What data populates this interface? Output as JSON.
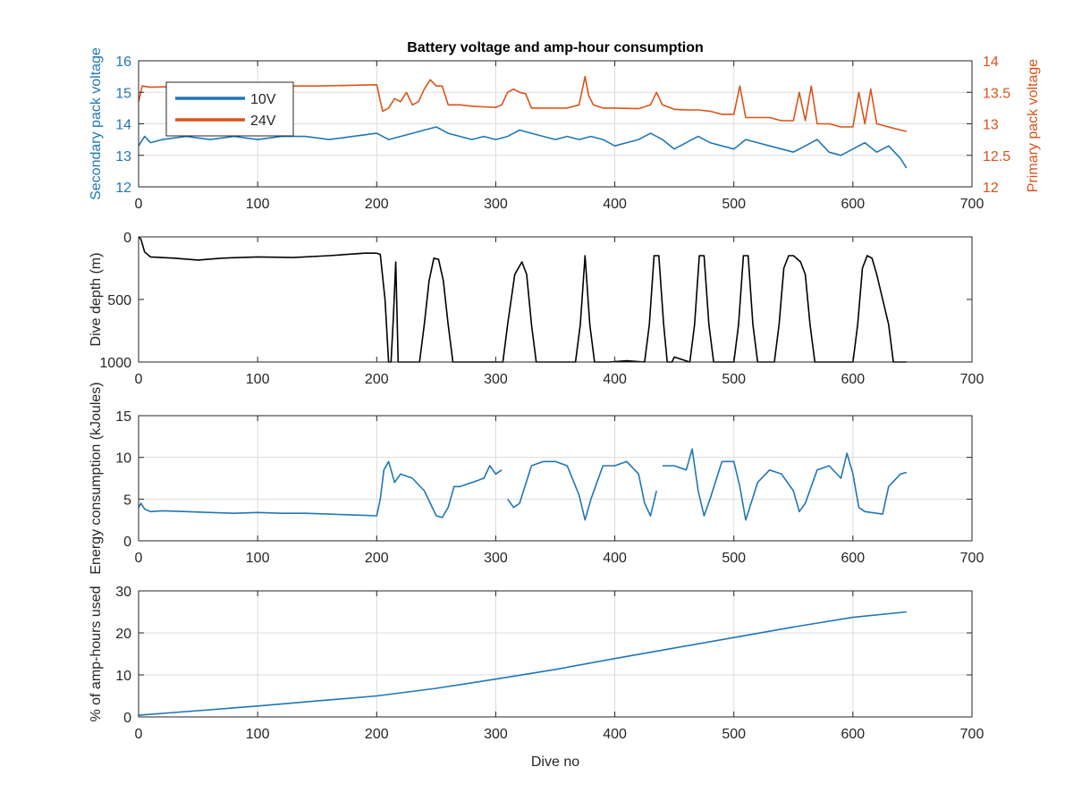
{
  "colors": {
    "blue": "#1f77b4",
    "orange": "#d95319",
    "black": "#000000",
    "grid": "#dcdcdc",
    "axis": "#262626"
  },
  "chart_data": [
    {
      "type": "line",
      "title": "Battery voltage and amp-hour consumption",
      "xlabel": "",
      "ylabel_left": "Secondary pack voltage",
      "ylabel_right": "Primary pack voltage",
      "xlim": [
        0,
        700
      ],
      "ylim_left": [
        12,
        16
      ],
      "ylim_right": [
        12,
        14
      ],
      "xticks": [
        0,
        100,
        200,
        300,
        400,
        500,
        600,
        700
      ],
      "yticks_left": [
        12,
        13,
        14,
        15,
        16
      ],
      "yticks_right": [
        12,
        12.5,
        13,
        13.5,
        14
      ],
      "grid": true,
      "legend": {
        "position": "top-left",
        "entries": [
          "10V",
          "24V"
        ]
      },
      "series": [
        {
          "name": "10V",
          "axis": "left",
          "color": "blue",
          "x": [
            0,
            5,
            10,
            20,
            40,
            60,
            80,
            100,
            120,
            140,
            160,
            180,
            200,
            210,
            220,
            230,
            240,
            250,
            260,
            270,
            280,
            290,
            300,
            310,
            320,
            330,
            340,
            350,
            360,
            370,
            380,
            390,
            400,
            410,
            420,
            430,
            440,
            450,
            460,
            470,
            480,
            490,
            500,
            510,
            520,
            530,
            540,
            550,
            560,
            570,
            580,
            590,
            600,
            610,
            620,
            630,
            640,
            645
          ],
          "y": [
            13.3,
            13.6,
            13.4,
            13.5,
            13.6,
            13.5,
            13.6,
            13.5,
            13.6,
            13.6,
            13.5,
            13.6,
            13.7,
            13.5,
            13.6,
            13.7,
            13.8,
            13.9,
            13.7,
            13.6,
            13.5,
            13.6,
            13.5,
            13.6,
            13.8,
            13.7,
            13.6,
            13.5,
            13.6,
            13.5,
            13.6,
            13.5,
            13.3,
            13.4,
            13.5,
            13.7,
            13.5,
            13.2,
            13.4,
            13.6,
            13.4,
            13.3,
            13.2,
            13.5,
            13.4,
            13.3,
            13.2,
            13.1,
            13.3,
            13.5,
            13.1,
            13.0,
            13.2,
            13.4,
            13.1,
            13.3,
            12.9,
            12.6
          ]
        },
        {
          "name": "24V",
          "axis": "right",
          "color": "orange",
          "x": [
            0,
            3,
            10,
            50,
            100,
            150,
            200,
            205,
            210,
            215,
            220,
            225,
            230,
            235,
            240,
            245,
            250,
            255,
            260,
            270,
            280,
            290,
            300,
            305,
            310,
            315,
            320,
            325,
            330,
            340,
            350,
            360,
            370,
            375,
            378,
            382,
            390,
            400,
            420,
            430,
            435,
            440,
            450,
            460,
            470,
            480,
            490,
            500,
            505,
            510,
            520,
            530,
            540,
            550,
            555,
            560,
            565,
            570,
            580,
            590,
            600,
            605,
            610,
            615,
            620,
            630,
            640,
            645
          ],
          "y": [
            13.35,
            13.6,
            13.58,
            13.6,
            13.6,
            13.6,
            13.62,
            13.2,
            13.25,
            13.4,
            13.35,
            13.5,
            13.3,
            13.35,
            13.55,
            13.7,
            13.6,
            13.6,
            13.3,
            13.3,
            13.28,
            13.27,
            13.26,
            13.3,
            13.5,
            13.55,
            13.5,
            13.48,
            13.25,
            13.25,
            13.25,
            13.25,
            13.3,
            13.75,
            13.45,
            13.3,
            13.25,
            13.25,
            13.24,
            13.3,
            13.5,
            13.3,
            13.23,
            13.22,
            13.22,
            13.2,
            13.15,
            13.15,
            13.6,
            13.1,
            13.1,
            13.1,
            13.05,
            13.05,
            13.5,
            13.05,
            13.6,
            13.0,
            13.0,
            12.95,
            12.95,
            13.5,
            13.0,
            13.55,
            13.0,
            12.95,
            12.9,
            12.88
          ]
        }
      ]
    },
    {
      "type": "line",
      "title": "",
      "xlabel": "",
      "ylabel": "Dive depth (m)",
      "xlim": [
        0,
        700
      ],
      "ylim": [
        0,
        1000
      ],
      "y_reversed": true,
      "xticks": [
        0,
        100,
        200,
        300,
        400,
        500,
        600,
        700
      ],
      "yticks": [
        0,
        500,
        1000
      ],
      "grid": false,
      "series": [
        {
          "color": "black",
          "x": [
            0,
            2,
            5,
            10,
            30,
            50,
            70,
            100,
            130,
            160,
            190,
            200,
            203,
            207,
            210,
            212,
            214,
            216,
            218,
            222,
            236,
            240,
            244,
            248,
            252,
            256,
            260,
            264,
            300,
            306,
            310,
            316,
            322,
            326,
            330,
            334,
            367,
            371,
            375,
            379,
            383,
            395,
            410,
            425,
            429,
            433,
            437,
            441,
            444,
            448,
            450,
            463,
            467,
            471,
            475,
            479,
            483,
            500,
            504,
            508,
            512,
            516,
            520,
            534,
            538,
            542,
            546,
            550,
            556,
            560,
            564,
            568,
            600,
            604,
            608,
            612,
            616,
            620,
            630,
            634,
            645
          ],
          "y": [
            0,
            20,
            120,
            160,
            170,
            185,
            170,
            160,
            165,
            150,
            130,
            130,
            140,
            500,
            1000,
            1000,
            650,
            200,
            1000,
            1000,
            1000,
            700,
            350,
            170,
            180,
            350,
            700,
            1000,
            1000,
            1000,
            700,
            300,
            200,
            300,
            700,
            1000,
            1000,
            700,
            150,
            700,
            1000,
            1000,
            990,
            1000,
            700,
            150,
            150,
            700,
            1000,
            1000,
            960,
            1000,
            700,
            150,
            150,
            700,
            1000,
            1000,
            700,
            150,
            150,
            700,
            1000,
            1000,
            700,
            250,
            150,
            150,
            200,
            300,
            700,
            1000,
            1000,
            700,
            250,
            150,
            170,
            300,
            700,
            1000,
            1000
          ]
        }
      ]
    },
    {
      "type": "line",
      "title": "",
      "xlabel": "",
      "ylabel": "Energy consumption (kJoules)",
      "xlim": [
        0,
        700
      ],
      "ylim": [
        0,
        15
      ],
      "xticks": [
        0,
        100,
        200,
        300,
        400,
        500,
        600,
        700
      ],
      "yticks": [
        0,
        5,
        10,
        15
      ],
      "grid": true,
      "series": [
        {
          "color": "blue",
          "x": [
            0,
            2,
            5,
            10,
            20,
            40,
            60,
            80,
            100,
            120,
            140,
            160,
            180,
            200,
            203,
            206,
            210,
            215,
            220,
            230,
            240,
            250,
            255,
            260,
            265,
            270,
            280,
            290,
            295,
            300,
            305,
            null,
            310,
            315,
            320,
            330,
            340,
            350,
            360,
            370,
            375,
            380,
            390,
            400,
            410,
            420,
            425,
            430,
            435,
            null,
            440,
            450,
            460,
            465,
            470,
            475,
            480,
            490,
            500,
            505,
            510,
            520,
            530,
            540,
            550,
            555,
            560,
            570,
            580,
            590,
            595,
            600,
            605,
            610,
            620,
            625,
            630,
            640,
            645
          ],
          "y": [
            4.0,
            4.5,
            3.8,
            3.5,
            3.6,
            3.5,
            3.4,
            3.3,
            3.4,
            3.3,
            3.3,
            3.2,
            3.1,
            3.0,
            5.0,
            8.5,
            9.5,
            7.0,
            8.0,
            7.5,
            6.0,
            3.0,
            2.8,
            4.0,
            6.5,
            6.5,
            7.0,
            7.5,
            9.0,
            8.0,
            8.5,
            null,
            5.0,
            4.0,
            4.5,
            9.0,
            9.5,
            9.5,
            9.0,
            5.5,
            2.5,
            5.0,
            9.0,
            9.0,
            9.5,
            8.0,
            4.5,
            3.0,
            6.0,
            null,
            9.0,
            9.0,
            8.5,
            11.0,
            6.0,
            3.0,
            5.0,
            9.5,
            9.5,
            6.5,
            2.5,
            7.0,
            8.5,
            8.0,
            6.0,
            3.5,
            4.5,
            8.5,
            9.0,
            7.5,
            10.5,
            8.0,
            4.0,
            3.5,
            3.3,
            3.2,
            6.5,
            8.0,
            8.2
          ]
        }
      ]
    },
    {
      "type": "line",
      "title": "",
      "xlabel": "Dive no",
      "ylabel": "% of amp-hours used",
      "xlim": [
        0,
        700
      ],
      "ylim": [
        0,
        30
      ],
      "xticks": [
        0,
        100,
        200,
        300,
        400,
        500,
        600,
        700
      ],
      "yticks": [
        0,
        10,
        20,
        30
      ],
      "grid": true,
      "series": [
        {
          "color": "blue",
          "x": [
            0,
            50,
            100,
            150,
            200,
            250,
            300,
            350,
            400,
            450,
            500,
            550,
            600,
            645
          ],
          "y": [
            0.4,
            1.5,
            2.6,
            3.8,
            5.0,
            6.8,
            9.0,
            11.3,
            13.9,
            16.4,
            18.9,
            21.4,
            23.7,
            25.0
          ]
        }
      ]
    }
  ]
}
